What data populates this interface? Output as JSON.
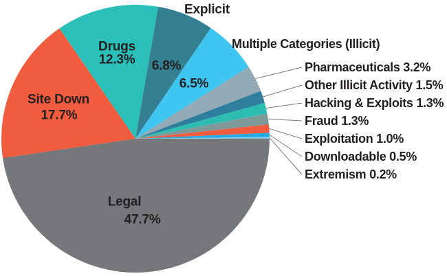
{
  "background_color": "#ffffff",
  "text_color": "#231f20",
  "leader_line_color": "#7b7b7b",
  "chart_data": {
    "type": "pie",
    "title": "",
    "legend_position": "none",
    "direction": "clockwise",
    "start_angle_deg": 9.72,
    "slices": [
      {
        "id": "explicit",
        "label": "Explicit",
        "value": 6.8,
        "pct_label": "6.8%",
        "color": "#347f92"
      },
      {
        "id": "multiple-categories",
        "label": "Multiple Categories (Illicit)",
        "value": 6.5,
        "pct_label": "6.5%",
        "color": "#3ec5f0"
      },
      {
        "id": "pharmaceuticals",
        "label": "Pharmaceuticals",
        "value": 3.2,
        "pct_label": "3.2%",
        "color": "#93aab6"
      },
      {
        "id": "other-illicit-activity",
        "label": "Other Illicit Activity",
        "value": 1.5,
        "pct_label": "1.5%",
        "color": "#2e7e9d"
      },
      {
        "id": "hacking-exploits",
        "label": "Hacking & Exploits",
        "value": 1.3,
        "pct_label": "1.3%",
        "color": "#2dbcb2"
      },
      {
        "id": "fraud",
        "label": "Fraud",
        "value": 1.3,
        "pct_label": "1.3%",
        "color": "#7e9a98"
      },
      {
        "id": "exploitation",
        "label": "Exploitation",
        "value": 1.0,
        "pct_label": "1.0%",
        "color": "#f15b3e"
      },
      {
        "id": "downloadable",
        "label": "Downloadable",
        "value": 0.5,
        "pct_label": "0.5%",
        "color": "#2aa9e0"
      },
      {
        "id": "extremism",
        "label": "Extremism",
        "value": 0.2,
        "pct_label": "0.2%",
        "color": "#7ccff1"
      },
      {
        "id": "legal",
        "label": "Legal",
        "value": 47.7,
        "pct_label": "47.7%",
        "color": "#76777b"
      },
      {
        "id": "site-down",
        "label": "Site Down",
        "value": 17.7,
        "pct_label": "17.7%",
        "color": "#f15b3e"
      },
      {
        "id": "drugs",
        "label": "Drugs",
        "value": 12.3,
        "pct_label": "12.3%",
        "color": "#2abfb9"
      }
    ]
  }
}
